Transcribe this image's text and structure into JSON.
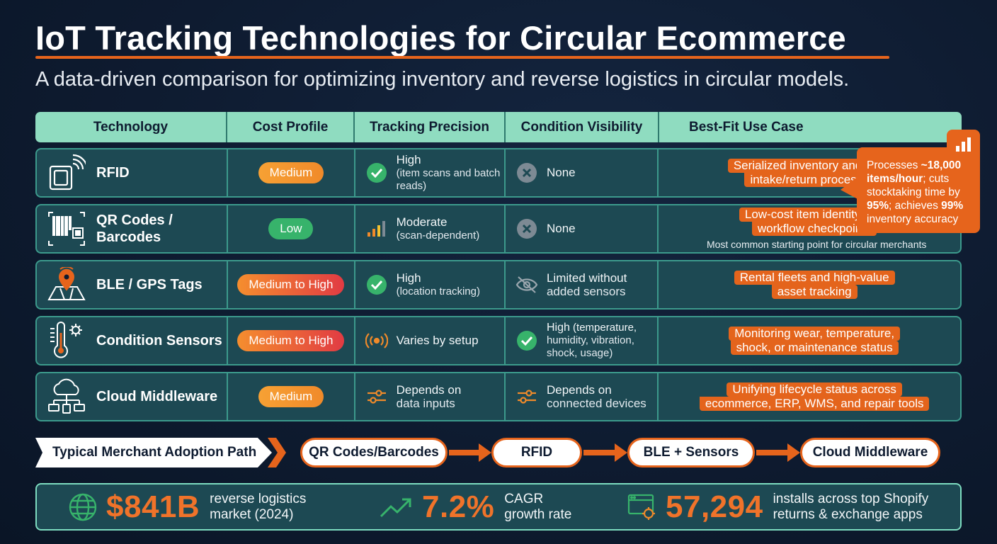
{
  "title": "IoT Tracking Technologies for Circular Ecommerce",
  "subtitle": "A data-driven comparison for optimizing inventory and reverse logistics in circular models.",
  "table": {
    "headers": [
      "Technology",
      "Cost Profile",
      "Tracking Precision",
      "Condition Visibility",
      "Best-Fit Use Case"
    ],
    "rows": [
      {
        "technology": "RFID",
        "cost": "Medium",
        "precision_main": "High",
        "precision_sub": "(item scans and batch reads)",
        "condition_main": "None",
        "condition_sub": "",
        "use_line1": "Serialized inventory and faster",
        "use_line2": "intake/return processing",
        "use_note": ""
      },
      {
        "technology": "QR Codes /\nBarcodes",
        "cost": "Low",
        "precision_main": "Moderate",
        "precision_sub": "(scan-dependent)",
        "condition_main": "None",
        "condition_sub": "",
        "use_line1": "Low-cost item identity and",
        "use_line2": "workflow checkpoints",
        "use_note": "Most common starting point for circular merchants"
      },
      {
        "technology": "BLE / GPS Tags",
        "cost": "Medium to High",
        "precision_main": "High",
        "precision_sub": "(location tracking)",
        "condition_main": "Limited without",
        "condition_sub": "added sensors",
        "use_line1": "Rental fleets and high-value",
        "use_line2": "asset tracking",
        "use_note": ""
      },
      {
        "technology": "Condition Sensors",
        "cost": "Medium to High",
        "precision_main": "Varies by setup",
        "precision_sub": "",
        "condition_main": "High",
        "condition_inline": " (temperature,",
        "condition_sub": "humidity, vibration, shock, usage)",
        "use_line1": "Monitoring wear, temperature,",
        "use_line2": "shock, or maintenance status",
        "use_note": ""
      },
      {
        "technology": "Cloud Middleware",
        "cost": "Medium",
        "precision_main": "Depends on",
        "precision_sub": "data inputs",
        "condition_main": "Depends on",
        "condition_sub": "connected devices",
        "use_line1": "Unifying lifecycle status across",
        "use_line2": "ecommerce, ERP, WMS, and repair tools",
        "use_note": ""
      }
    ]
  },
  "callout": {
    "p1": "Processes ",
    "b1": "~18,000 items/hour",
    "p2": "; cuts stocktaking time by ",
    "b2": "95%",
    "p3": "; achieves ",
    "b3": "99%",
    "p4": " inventory accuracy"
  },
  "adoption": {
    "label": "Typical Merchant Adoption Path",
    "steps": [
      "QR Codes/Barcodes",
      "RFID",
      "BLE + Sensors",
      "Cloud Middleware"
    ]
  },
  "stats": [
    {
      "value": "$841B",
      "desc": "reverse logistics\nmarket (2024)",
      "icon": "globe-icon"
    },
    {
      "value": "7.2%",
      "desc": "CAGR\ngrowth rate",
      "icon": "trend-up-icon"
    },
    {
      "value": "57,294",
      "desc": "installs across top Shopify\nreturns & exchange apps",
      "icon": "app-settings-icon"
    }
  ],
  "colors": {
    "background": "#0e1b30",
    "header_teal": "#8fdcc0",
    "row_teal": "#1d4953",
    "accent_orange": "#e6641c",
    "low_green": "#37b36b",
    "high_red": "#e13b43"
  }
}
